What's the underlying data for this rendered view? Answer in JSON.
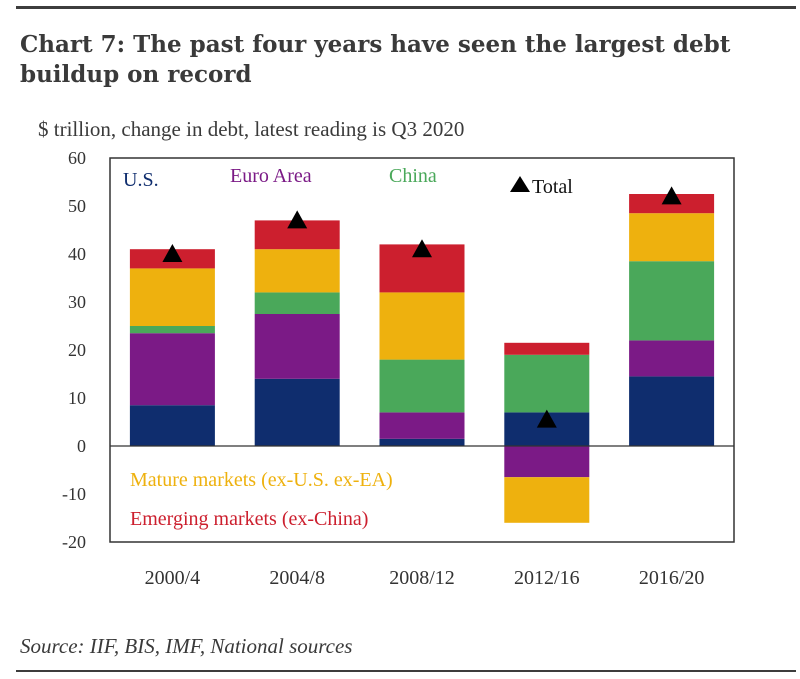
{
  "title": "Chart 7: The past four years have seen the largest debt buildup on record",
  "subtitle": "$ trillion, change in debt, latest reading is Q3 2020",
  "source": "Source: IIF, BIS, IMF, National sources",
  "colors": {
    "us": "#0f2d6e",
    "euro_area": "#7b1a86",
    "china": "#4aa85a",
    "mature": "#eeb10e",
    "emerging": "#cc1f2e",
    "total_marker": "#000000"
  },
  "legend": {
    "us": "U.S.",
    "euro_area": "Euro Area",
    "china": "China",
    "total": "Total",
    "mature": "Mature markets (ex-U.S. ex-EA)",
    "emerging": "Emerging markets (ex-China)"
  },
  "chart_data": {
    "type": "bar",
    "stacked": true,
    "title": "Chart 7: The past four years have seen the largest debt buildup on record",
    "ylabel": "$ trillion, change in debt, latest reading is Q3 2020",
    "ylim": [
      -20,
      60
    ],
    "yticks": [
      60,
      50,
      40,
      30,
      20,
      10,
      0,
      -10,
      -20
    ],
    "categories": [
      "2000/4",
      "2004/8",
      "2008/12",
      "2012/16",
      "2016/20"
    ],
    "series": [
      {
        "name": "U.S.",
        "key": "us",
        "values": [
          8.5,
          14,
          1.5,
          7,
          14.5
        ]
      },
      {
        "name": "Euro Area",
        "key": "euro_area",
        "values": [
          15,
          13.5,
          5.5,
          -6.5,
          7.5
        ]
      },
      {
        "name": "China",
        "key": "china",
        "values": [
          1.5,
          4.5,
          11,
          12,
          16.5
        ]
      },
      {
        "name": "Mature markets (ex-U.S. ex-EA)",
        "key": "mature",
        "values": [
          12,
          9,
          14,
          -9.5,
          10
        ]
      },
      {
        "name": "Emerging markets (ex-China)",
        "key": "emerging",
        "values": [
          4,
          6,
          10,
          2.5,
          4
        ]
      }
    ],
    "total": {
      "name": "Total",
      "values": [
        40,
        47,
        41,
        5.5,
        52
      ]
    },
    "legend_position": "inside-top",
    "grid": false
  }
}
